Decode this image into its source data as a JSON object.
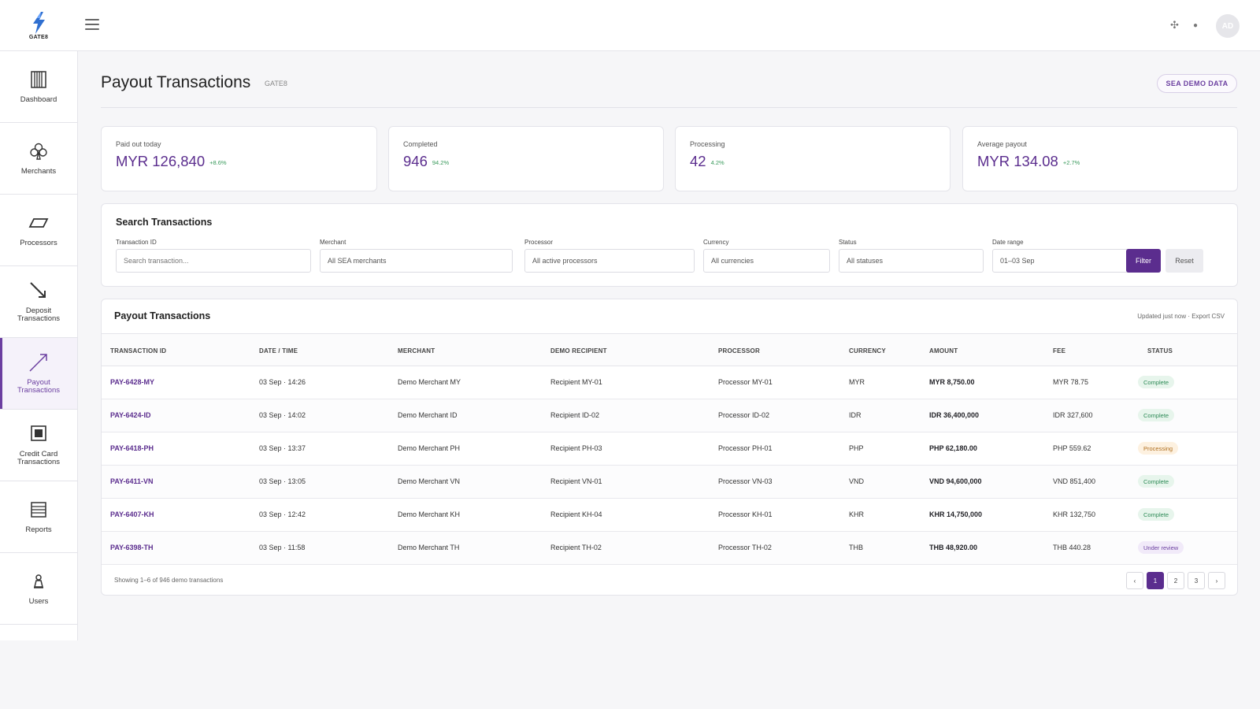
{
  "brand": {
    "logo_text": "GATE8"
  },
  "header": {
    "avatar_initials": "AD"
  },
  "sidebar": {
    "items": [
      {
        "label": "Dashboard"
      },
      {
        "label": "Merchants"
      },
      {
        "label": "Processors"
      },
      {
        "label": "Deposit Transactions"
      },
      {
        "label": "Payout Transactions"
      },
      {
        "label": "Credit Card Transactions"
      },
      {
        "label": "Reports"
      },
      {
        "label": "Users"
      }
    ],
    "active_index": 4
  },
  "page": {
    "title": "Payout Transactions",
    "subtitle": "GATE8",
    "badge": "SEA DEMO DATA"
  },
  "stats": [
    {
      "label": "Paid out today",
      "value": "MYR 126,840",
      "change": "+8.6%"
    },
    {
      "label": "Completed",
      "value": "946",
      "change": "94.2%"
    },
    {
      "label": "Processing",
      "value": "42",
      "change": "4.2%"
    },
    {
      "label": "Average payout",
      "value": "MYR 134.08",
      "change": "+2.7%"
    }
  ],
  "search": {
    "title": "Search Transactions",
    "fields": [
      {
        "label": "Transaction ID",
        "placeholder": "Search transaction..."
      },
      {
        "label": "Merchant",
        "value": "All SEA merchants"
      },
      {
        "label": "Processor",
        "value": "All active processors"
      },
      {
        "label": "Currency",
        "value": "All currencies"
      },
      {
        "label": "Status",
        "value": "All statuses"
      },
      {
        "label": "Date range",
        "value": "01–03 Sep"
      }
    ],
    "filter_label": "Filter",
    "reset_label": "Reset"
  },
  "table": {
    "title": "Payout Transactions",
    "meta": "Updated just now · Export CSV",
    "columns": [
      "TRANSACTION ID",
      "DATE / TIME",
      "MERCHANT",
      "DEMO RECIPIENT",
      "PROCESSOR",
      "CURRENCY",
      "AMOUNT",
      "FEE",
      "STATUS"
    ],
    "rows": [
      {
        "id": "PAY-6428-MY",
        "datetime": "03 Sep · 14:26",
        "merchant": "Demo Merchant MY",
        "recipient": "Recipient MY-01",
        "processor": "Processor MY-01",
        "currency": "MYR",
        "amount": "MYR 8,750.00",
        "fee": "MYR 78.75",
        "status": "Complete"
      },
      {
        "id": "PAY-6424-ID",
        "datetime": "03 Sep · 14:02",
        "merchant": "Demo Merchant ID",
        "recipient": "Recipient ID-02",
        "processor": "Processor ID-02",
        "currency": "IDR",
        "amount": "IDR 36,400,000",
        "fee": "IDR 327,600",
        "status": "Complete"
      },
      {
        "id": "PAY-6418-PH",
        "datetime": "03 Sep · 13:37",
        "merchant": "Demo Merchant PH",
        "recipient": "Recipient PH-03",
        "processor": "Processor PH-01",
        "currency": "PHP",
        "amount": "PHP 62,180.00",
        "fee": "PHP 559.62",
        "status": "Processing"
      },
      {
        "id": "PAY-6411-VN",
        "datetime": "03 Sep · 13:05",
        "merchant": "Demo Merchant VN",
        "recipient": "Recipient VN-01",
        "processor": "Processor VN-03",
        "currency": "VND",
        "amount": "VND 94,600,000",
        "fee": "VND 851,400",
        "status": "Complete"
      },
      {
        "id": "PAY-6407-KH",
        "datetime": "03 Sep · 12:42",
        "merchant": "Demo Merchant KH",
        "recipient": "Recipient KH-04",
        "processor": "Processor KH-01",
        "currency": "KHR",
        "amount": "KHR 14,750,000",
        "fee": "KHR 132,750",
        "status": "Complete"
      },
      {
        "id": "PAY-6398-TH",
        "datetime": "03 Sep · 11:58",
        "merchant": "Demo Merchant TH",
        "recipient": "Recipient TH-02",
        "processor": "Processor TH-02",
        "currency": "THB",
        "amount": "THB 48,920.00",
        "fee": "THB 440.28",
        "status": "Under review"
      }
    ],
    "footer": "Showing 1–6 of 946 demo transactions",
    "pagination": {
      "prev": "‹",
      "pages": [
        "1",
        "2",
        "3"
      ],
      "next": "›",
      "current": "1"
    }
  },
  "colors": {
    "accent": "#5b2d8e",
    "complete": "#2e8b57",
    "processing": "#b07020",
    "review": "#6b3fa0"
  }
}
